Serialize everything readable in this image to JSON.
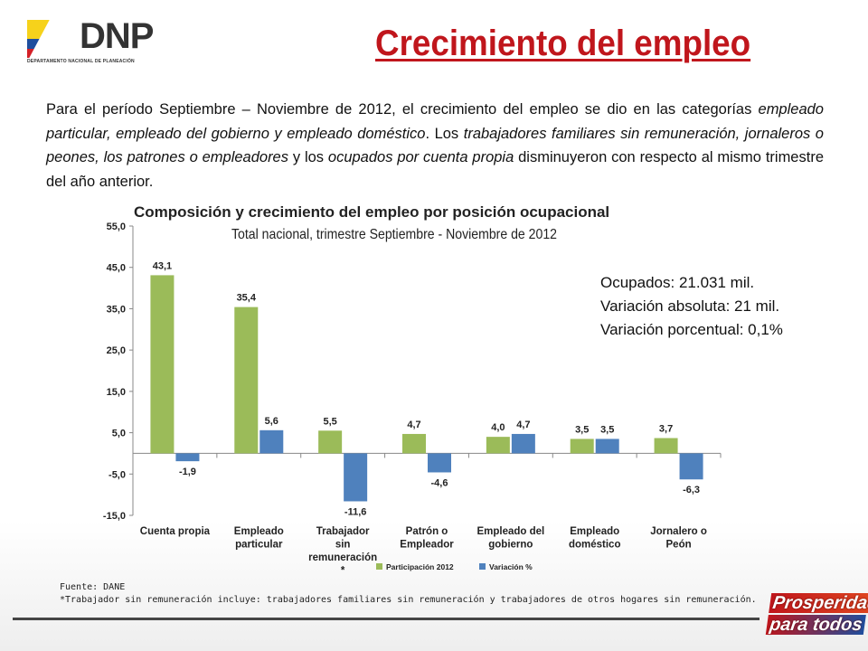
{
  "logo": {
    "name": "DNP",
    "subtitle": "DEPARTAMENTO NACIONAL DE PLANEACIÓN"
  },
  "title": "Crecimiento del empleo",
  "intro": {
    "p1": "Para el período Septiembre – Noviembre de 2012, el crecimiento del empleo se dio en las categorías ",
    "i1": "empleado particular, empleado del gobierno y empleado doméstico",
    "p2": ". Los ",
    "i2": "trabajadores familiares sin remuneración, jornaleros o peones, los patrones o empleadores",
    "p3": " y los ",
    "i3": "ocupados por cuenta propia",
    "p4": " disminuyeron con respecto al mismo trimestre del año anterior."
  },
  "info": {
    "ocupados": "Ocupados: 21.031 mil.",
    "var_abs": "Variación absoluta: 21 mil.",
    "var_pct": "Variación porcentual: 0,1%"
  },
  "chart_data": {
    "type": "bar",
    "title": "Composición y crecimiento del empleo por posición ocupacional",
    "subtitle": "Total nacional, trimestre Septiembre - Noviembre de 2012",
    "categories": [
      [
        "Cuenta propia"
      ],
      [
        "Empleado",
        "particular"
      ],
      [
        "Trabajador",
        "sin",
        "remuneración",
        "*"
      ],
      [
        "Patrón o",
        "Empleador"
      ],
      [
        "Empleado del",
        "gobierno"
      ],
      [
        "Empleado",
        "doméstico"
      ],
      [
        "Jornalero o",
        "Peón"
      ]
    ],
    "series": [
      {
        "name": "Participación 2012",
        "color": "#9bbb59",
        "values": [
          43.1,
          35.4,
          5.5,
          4.7,
          4.0,
          3.5,
          3.7
        ],
        "labels": [
          "43,1",
          "35,4",
          "5,5",
          "4,7",
          "4,0",
          "3,5",
          "3,7"
        ]
      },
      {
        "name": "Variación %",
        "color": "#4f81bd",
        "values": [
          -1.9,
          5.6,
          -11.6,
          -4.6,
          4.7,
          3.5,
          -6.3
        ],
        "labels": [
          "-1,9",
          "5,6",
          "-11,6",
          "-4,6",
          "4,7",
          "3,5",
          "-6,3"
        ]
      }
    ],
    "ylim": [
      -15,
      55
    ],
    "yticks": [
      -15,
      -5,
      5,
      15,
      25,
      35,
      45,
      55
    ],
    "ytick_labels": [
      "-15,0",
      "-5,0",
      "5,0",
      "15,0",
      "25,0",
      "35,0",
      "45,0",
      "55,0"
    ],
    "legend": "bottom",
    "grid": false
  },
  "footer": {
    "source": "Fuente: DANE",
    "note": "*Trabajador sin remuneración incluye: trabajadores familiares sin remuneración y trabajadores de otros hogares sin remuneración."
  },
  "brand": {
    "line1": "Prosperidad",
    "line2": "para todos"
  }
}
